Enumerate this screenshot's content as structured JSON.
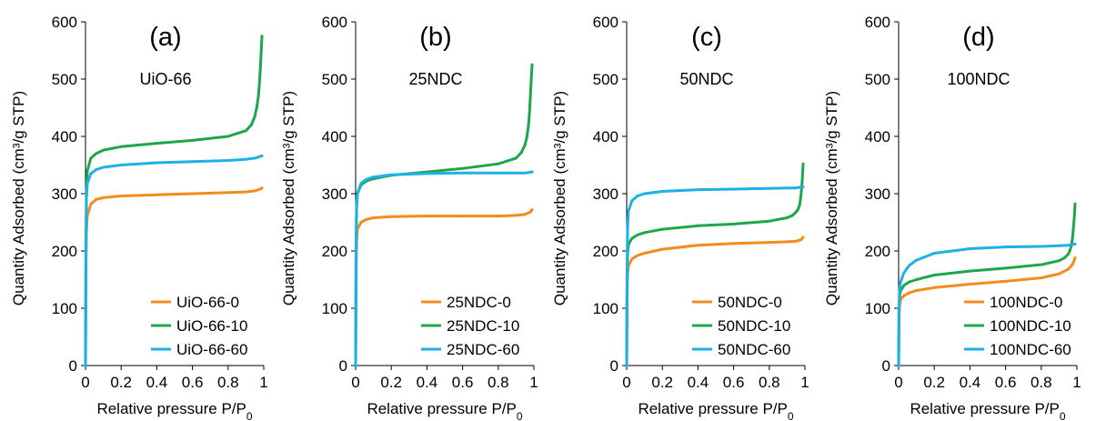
{
  "chart_data": [
    {
      "type": "line",
      "panel_label": "(a)",
      "title": "UiO-66",
      "xlabel": "Relative pressure P/P",
      "xlabel_sub": "0",
      "ylabel": "Quantity Adsorbed (cm³/g STP)",
      "xlim": [
        0,
        1
      ],
      "ylim": [
        0,
        600
      ],
      "x_ticks": [
        0,
        0.2,
        0.4,
        0.6,
        0.8,
        1
      ],
      "x_tick_labels": [
        "0",
        "0.2",
        "0.4",
        "0.6",
        "0.8",
        "1"
      ],
      "y_ticks": [
        0,
        100,
        200,
        300,
        400,
        500,
        600
      ],
      "y_tick_labels": [
        "0",
        "100",
        "200",
        "300",
        "400",
        "500",
        "600"
      ],
      "legend_position": "bottom-right",
      "series": [
        {
          "name": "UiO-66-0",
          "color": "#F28C1C",
          "x": [
            0,
            0.002,
            0.005,
            0.01,
            0.03,
            0.06,
            0.1,
            0.2,
            0.4,
            0.6,
            0.8,
            0.9,
            0.95,
            0.98,
            0.99
          ],
          "y": [
            0,
            150,
            232,
            262,
            282,
            290,
            293,
            296,
            298,
            300,
            302,
            303,
            305,
            308,
            310
          ]
        },
        {
          "name": "UiO-66-10",
          "color": "#1FA64A",
          "x": [
            0,
            0.002,
            0.005,
            0.01,
            0.03,
            0.06,
            0.1,
            0.2,
            0.4,
            0.6,
            0.8,
            0.9,
            0.93,
            0.95,
            0.96,
            0.97,
            0.975,
            0.98,
            0.985,
            0.99
          ],
          "y": [
            0,
            180,
            300,
            340,
            362,
            370,
            376,
            382,
            388,
            393,
            400,
            410,
            420,
            435,
            450,
            470,
            490,
            515,
            545,
            575
          ]
        },
        {
          "name": "UiO-66-60",
          "color": "#1EB0E8",
          "x": [
            0,
            0.002,
            0.005,
            0.01,
            0.03,
            0.06,
            0.1,
            0.2,
            0.4,
            0.6,
            0.8,
            0.9,
            0.95,
            0.99
          ],
          "y": [
            0,
            170,
            290,
            318,
            335,
            342,
            346,
            350,
            354,
            356,
            358,
            360,
            362,
            366
          ]
        }
      ]
    },
    {
      "type": "line",
      "panel_label": "(b)",
      "title": "25NDC",
      "xlabel": "Relative pressure P/P",
      "xlabel_sub": "0",
      "ylabel": "Quantity Adsorbed (cm³/g STP)",
      "xlim": [
        0,
        1
      ],
      "ylim": [
        0,
        600
      ],
      "x_ticks": [
        0,
        0.2,
        0.4,
        0.6,
        0.8,
        1
      ],
      "x_tick_labels": [
        "0",
        "0.2",
        "0.4",
        "0.6",
        "0.8",
        "1"
      ],
      "y_ticks": [
        0,
        100,
        200,
        300,
        400,
        500,
        600
      ],
      "y_tick_labels": [
        "0",
        "100",
        "200",
        "300",
        "400",
        "500",
        "600"
      ],
      "legend_position": "bottom-right",
      "series": [
        {
          "name": "25NDC-0",
          "color": "#F28C1C",
          "x": [
            0,
            0.002,
            0.005,
            0.01,
            0.03,
            0.06,
            0.1,
            0.2,
            0.4,
            0.6,
            0.8,
            0.9,
            0.95,
            0.98,
            0.99
          ],
          "y": [
            0,
            130,
            215,
            238,
            250,
            255,
            258,
            260,
            261,
            261,
            261,
            262,
            264,
            268,
            272
          ]
        },
        {
          "name": "25NDC-10",
          "color": "#1FA64A",
          "x": [
            0,
            0.002,
            0.005,
            0.01,
            0.03,
            0.06,
            0.1,
            0.2,
            0.4,
            0.6,
            0.8,
            0.9,
            0.93,
            0.95,
            0.96,
            0.97,
            0.975,
            0.98,
            0.985,
            0.99
          ],
          "y": [
            0,
            170,
            275,
            300,
            315,
            322,
            326,
            332,
            338,
            344,
            352,
            362,
            372,
            385,
            398,
            420,
            440,
            470,
            500,
            525
          ]
        },
        {
          "name": "25NDC-60",
          "color": "#1EB0E8",
          "x": [
            0,
            0.002,
            0.005,
            0.01,
            0.03,
            0.06,
            0.1,
            0.2,
            0.4,
            0.6,
            0.8,
            0.9,
            0.95,
            0.99
          ],
          "y": [
            0,
            180,
            280,
            300,
            318,
            325,
            329,
            333,
            335,
            336,
            336,
            336,
            336,
            338
          ]
        }
      ]
    },
    {
      "type": "line",
      "panel_label": "(c)",
      "title": "50NDC",
      "xlabel": "Relative pressure P/P",
      "xlabel_sub": "0",
      "ylabel": "Quantity Adsorbed (cm³/g STP)",
      "xlim": [
        0,
        1
      ],
      "ylim": [
        0,
        600
      ],
      "x_ticks": [
        0,
        0.2,
        0.4,
        0.6,
        0.8,
        1
      ],
      "x_tick_labels": [
        "0",
        "0.2",
        "0.4",
        "0.6",
        "0.8",
        "1"
      ],
      "y_ticks": [
        0,
        100,
        200,
        300,
        400,
        500,
        600
      ],
      "y_tick_labels": [
        "0",
        "100",
        "200",
        "300",
        "400",
        "500",
        "600"
      ],
      "legend_position": "bottom-right",
      "series": [
        {
          "name": "50NDC-0",
          "color": "#F28C1C",
          "x": [
            0,
            0.002,
            0.005,
            0.01,
            0.03,
            0.06,
            0.1,
            0.2,
            0.4,
            0.6,
            0.8,
            0.9,
            0.95,
            0.98,
            0.99
          ],
          "y": [
            0,
            110,
            160,
            175,
            186,
            192,
            196,
            203,
            210,
            213,
            215,
            216,
            217,
            220,
            224
          ]
        },
        {
          "name": "50NDC-10",
          "color": "#1FA64A",
          "x": [
            0,
            0.002,
            0.005,
            0.01,
            0.03,
            0.06,
            0.1,
            0.2,
            0.4,
            0.6,
            0.8,
            0.9,
            0.93,
            0.95,
            0.96,
            0.97,
            0.975,
            0.98,
            0.985,
            0.99
          ],
          "y": [
            0,
            130,
            195,
            212,
            222,
            228,
            232,
            238,
            244,
            247,
            252,
            258,
            262,
            268,
            272,
            280,
            290,
            305,
            325,
            352
          ]
        },
        {
          "name": "50NDC-60",
          "color": "#1EB0E8",
          "x": [
            0,
            0.002,
            0.005,
            0.01,
            0.03,
            0.06,
            0.1,
            0.2,
            0.4,
            0.6,
            0.8,
            0.9,
            0.95,
            0.99
          ],
          "y": [
            0,
            160,
            240,
            270,
            288,
            296,
            300,
            304,
            307,
            308,
            309,
            310,
            310,
            312
          ]
        }
      ]
    },
    {
      "type": "line",
      "panel_label": "(d)",
      "title": "100NDC",
      "xlabel": "Relative pressure P/P",
      "xlabel_sub": "0",
      "ylabel": "Quantity Adsorbed (cm³/g STP)",
      "xlim": [
        0,
        1
      ],
      "ylim": [
        0,
        600
      ],
      "x_ticks": [
        0,
        0.2,
        0.4,
        0.6,
        0.8,
        1
      ],
      "x_tick_labels": [
        "0",
        "0.2",
        "0.4",
        "0.6",
        "0.8",
        "1"
      ],
      "y_ticks": [
        0,
        100,
        200,
        300,
        400,
        500,
        600
      ],
      "y_tick_labels": [
        "0",
        "100",
        "200",
        "300",
        "400",
        "500",
        "600"
      ],
      "legend_position": "bottom-right",
      "series": [
        {
          "name": "100NDC-0",
          "color": "#F28C1C",
          "x": [
            0,
            0.002,
            0.005,
            0.01,
            0.03,
            0.06,
            0.1,
            0.2,
            0.4,
            0.6,
            0.8,
            0.9,
            0.95,
            0.97,
            0.98,
            0.99
          ],
          "y": [
            0,
            80,
            105,
            115,
            122,
            127,
            131,
            136,
            142,
            147,
            153,
            160,
            168,
            174,
            180,
            188
          ]
        },
        {
          "name": "100NDC-10",
          "color": "#1FA64A",
          "x": [
            0,
            0.002,
            0.005,
            0.01,
            0.03,
            0.06,
            0.1,
            0.2,
            0.4,
            0.6,
            0.8,
            0.9,
            0.93,
            0.95,
            0.96,
            0.97,
            0.975,
            0.98,
            0.985,
            0.99
          ],
          "y": [
            0,
            90,
            120,
            130,
            140,
            146,
            150,
            158,
            165,
            170,
            176,
            183,
            188,
            194,
            200,
            210,
            222,
            238,
            258,
            282
          ]
        },
        {
          "name": "100NDC-60",
          "color": "#1EB0E8",
          "x": [
            0,
            0.002,
            0.005,
            0.01,
            0.03,
            0.06,
            0.1,
            0.2,
            0.4,
            0.6,
            0.8,
            0.9,
            0.95,
            0.99
          ],
          "y": [
            0,
            95,
            130,
            145,
            162,
            175,
            184,
            196,
            204,
            207,
            208,
            209,
            210,
            212
          ]
        }
      ]
    }
  ]
}
